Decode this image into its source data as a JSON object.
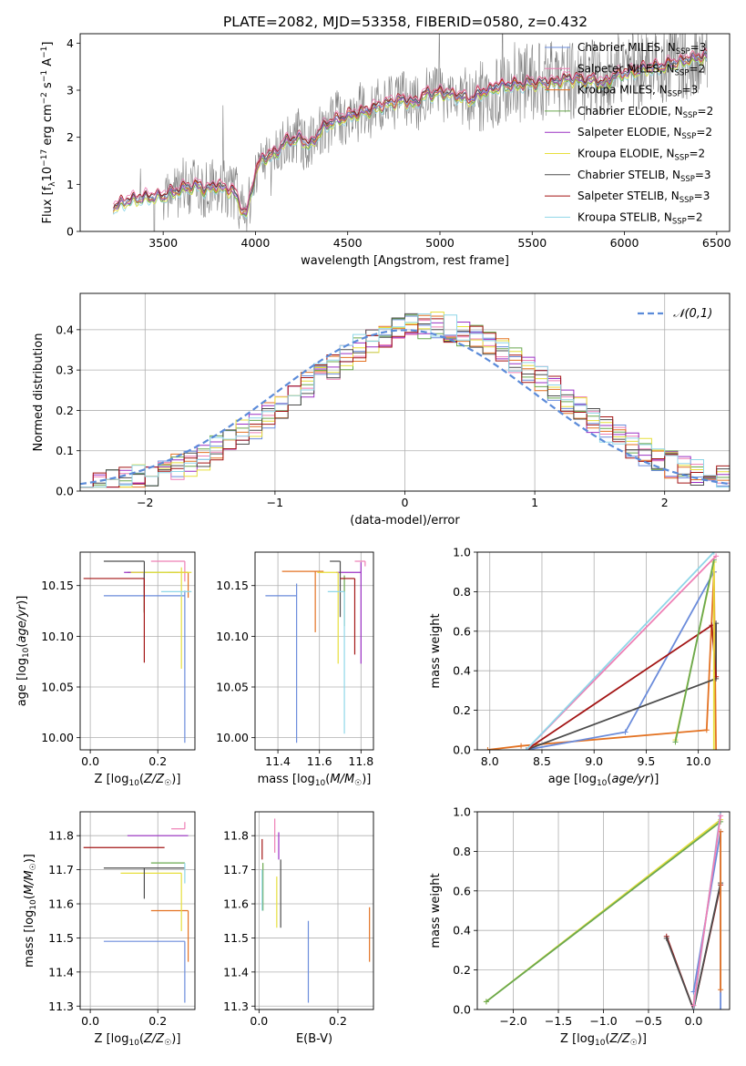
{
  "figure": {
    "title": "PLATE=2082, MJD=53358, FIBERID=0580, z=0.432"
  },
  "colors": {
    "Chabrier MILES": "#6b8cdb",
    "Salpeter MILES": "#ee7fb5",
    "Kroupa MILES": "#e37222",
    "Chabrier ELODIE": "#6aa84f",
    "Salpeter ELODIE": "#9b30c4",
    "Kroupa ELODIE": "#e7df3c",
    "Chabrier STELIB": "#4d4d4d",
    "Salpeter STELIB": "#a31515",
    "Kroupa STELIB": "#8fd6e8",
    "Gaussian": "#5b8bd9",
    "data": "#808080"
  },
  "chart_data": [
    {
      "id": "spectrum",
      "type": "line",
      "xlabel": "wavelength [Angstrom, rest frame]",
      "ylabel": "Flux [f_λ 10^-17 erg cm^-2 s^-1 A^-1]",
      "xlim": [
        3050,
        6570
      ],
      "ylim": [
        0,
        4.2
      ],
      "xticks": [
        3500,
        4000,
        4500,
        5000,
        5500,
        6000,
        6500
      ],
      "yticks": [
        0,
        1,
        2,
        3,
        4
      ],
      "grid": false,
      "legend_position": "upper-right",
      "legend": [
        {
          "name": "Chabrier MILES",
          "nssp": "3"
        },
        {
          "name": "Salpeter MILES",
          "nssp": "2"
        },
        {
          "name": "Kroupa MILES",
          "nssp": "3"
        },
        {
          "name": "Chabrier ELODIE",
          "nssp": "2"
        },
        {
          "name": "Salpeter ELODIE",
          "nssp": "2"
        },
        {
          "name": "Kroupa ELODIE",
          "nssp": "2"
        },
        {
          "name": "Chabrier STELIB",
          "nssp": "3"
        },
        {
          "name": "Salpeter STELIB",
          "nssp": "3"
        },
        {
          "name": "Kroupa STELIB",
          "nssp": "2"
        }
      ],
      "continuum": {
        "x": [
          3230,
          3300,
          3400,
          3500,
          3600,
          3700,
          3800,
          3900,
          3950,
          4000,
          4100,
          4200,
          4300,
          4400,
          4500,
          4600,
          4700,
          4800,
          4900,
          5000,
          5100,
          5200,
          5300,
          5400,
          5500,
          5600,
          5700,
          5800,
          5900,
          6000,
          6100,
          6200,
          6300,
          6400
        ],
        "y": [
          0.5,
          0.65,
          0.72,
          0.75,
          0.9,
          1.0,
          0.95,
          0.85,
          0.9,
          1.4,
          1.8,
          1.95,
          2.05,
          2.3,
          2.45,
          2.55,
          2.7,
          2.8,
          2.9,
          2.95,
          2.9,
          3.05,
          3.1,
          3.1,
          3.15,
          3.15,
          3.25,
          3.2,
          3.3,
          3.35,
          3.45,
          3.5,
          3.6,
          3.7
        ]
      }
    },
    {
      "id": "residuals",
      "type": "step",
      "xlabel": "(data-model)/error",
      "ylabel": "Normed distribution",
      "xlim": [
        -2.5,
        2.5
      ],
      "ylim": [
        0,
        0.49
      ],
      "xticks": [
        -2,
        -1,
        0,
        1,
        2
      ],
      "yticks": [
        0.0,
        0.1,
        0.2,
        0.3,
        0.4
      ],
      "grid": true,
      "legend_position": "upper-right",
      "gaussian_label": "𝒩(0,1)"
    },
    {
      "id": "age_vs_Z",
      "type": "errorbar",
      "xlabel": "Z [log10(Z/Z☉)]",
      "ylabel": "age [log10(age/yr)]",
      "xlim": [
        -0.03,
        0.31
      ],
      "ylim": [
        9.988,
        10.183
      ],
      "xticks": [
        0.0,
        0.2
      ],
      "yticks": [
        10.0,
        10.05,
        10.1,
        10.15
      ],
      "grid": true,
      "points": [
        {
          "model": "Chabrier MILES",
          "x": 0.28,
          "xerr": [
            0.24,
            0.0
          ],
          "y": 10.14,
          "yerr": [
            0.145,
            0.005
          ]
        },
        {
          "model": "Salpeter MILES",
          "x": 0.28,
          "xerr": [
            0.1,
            0.0
          ],
          "y": 10.174,
          "yerr": [
            0.02,
            0.0
          ]
        },
        {
          "model": "Kroupa MILES",
          "x": 0.29,
          "xerr": [
            0.06,
            0.0
          ],
          "y": 10.163,
          "yerr": [
            0.025,
            0.0
          ]
        },
        {
          "model": "Chabrier ELODIE",
          "x": 0.16,
          "xerr": [
            0.05,
            0.1
          ],
          "y": 10.163,
          "yerr": [
            0.04,
            0.0
          ]
        },
        {
          "model": "Salpeter ELODIE",
          "x": 0.16,
          "xerr": [
            0.06,
            0.0
          ],
          "y": 10.163,
          "yerr": [
            0.02,
            0.0
          ]
        },
        {
          "model": "Kroupa ELODIE",
          "x": 0.27,
          "xerr": [
            0.15,
            0.03
          ],
          "y": 10.163,
          "yerr": [
            0.095,
            0.005
          ]
        },
        {
          "model": "Chabrier STELIB",
          "x": 0.16,
          "xerr": [
            0.12,
            0.0
          ],
          "y": 10.174,
          "yerr": [
            0.05,
            0.0
          ]
        },
        {
          "model": "Salpeter STELIB",
          "x": 0.16,
          "xerr": [
            0.18,
            0.0
          ],
          "y": 10.157,
          "yerr": [
            0.083,
            0.0
          ]
        },
        {
          "model": "Kroupa STELIB",
          "x": 0.27,
          "xerr": [
            0.06,
            0.03
          ],
          "y": 10.144,
          "yerr": [
            0.005,
            0.0
          ]
        }
      ]
    },
    {
      "id": "age_vs_mass",
      "type": "errorbar",
      "xlabel": "mass [log10(M/M☉)]",
      "ylabel": "",
      "xlim": [
        11.29,
        11.86
      ],
      "ylim": [
        9.988,
        10.183
      ],
      "xticks": [
        11.4,
        11.6,
        11.8
      ],
      "yticks": [
        10.0,
        10.05,
        10.1,
        10.15
      ],
      "grid": true,
      "points": [
        {
          "model": "Chabrier MILES",
          "x": 11.49,
          "xerr": [
            0.15,
            0.0
          ],
          "y": 10.14,
          "yerr": [
            0.145,
            0.012
          ]
        },
        {
          "model": "Salpeter MILES",
          "x": 11.82,
          "xerr": [
            0.05,
            0.0
          ],
          "y": 10.174,
          "yerr": [
            0.005,
            0.0
          ]
        },
        {
          "model": "Kroupa MILES",
          "x": 11.58,
          "xerr": [
            0.16,
            0.04
          ],
          "y": 10.164,
          "yerr": [
            0.06,
            0.0
          ]
        },
        {
          "model": "Chabrier ELODIE",
          "x": 11.72,
          "xerr": [
            0.0,
            0.0
          ],
          "y": 10.16,
          "yerr": [
            0.05,
            0.0
          ]
        },
        {
          "model": "Salpeter ELODIE",
          "x": 11.8,
          "xerr": [
            0.12,
            0.0
          ],
          "y": 10.163,
          "yerr": [
            0.09,
            0.01
          ]
        },
        {
          "model": "Kroupa ELODIE",
          "x": 11.69,
          "xerr": [
            0.1,
            0.0
          ],
          "y": 10.163,
          "yerr": [
            0.09,
            0.0
          ]
        },
        {
          "model": "Chabrier STELIB",
          "x": 11.7,
          "xerr": [
            0.05,
            0.0
          ],
          "y": 10.174,
          "yerr": [
            0.055,
            0.0
          ]
        },
        {
          "model": "Salpeter STELIB",
          "x": 11.77,
          "xerr": [
            0.07,
            0.0
          ],
          "y": 10.157,
          "yerr": [
            0.075,
            0.0
          ]
        },
        {
          "model": "Kroupa STELIB",
          "x": 11.72,
          "xerr": [
            0.08,
            0.0
          ],
          "y": 10.144,
          "yerr": [
            0.14,
            0.0
          ]
        }
      ]
    },
    {
      "id": "weight_vs_age",
      "type": "line",
      "xlabel": "age [log10(age/yr)]",
      "ylabel": "mass weight",
      "xlim": [
        7.88,
        10.3
      ],
      "ylim": [
        0,
        1
      ],
      "xticks": [
        8.0,
        8.5,
        9.0,
        9.5,
        10.0
      ],
      "yticks": [
        0.0,
        0.2,
        0.4,
        0.6,
        0.8,
        1.0
      ],
      "grid": true,
      "series": [
        {
          "model": "Kroupa MILES",
          "x": [
            7.98,
            8.3,
            10.08,
            10.15,
            10.17
          ],
          "y": [
            0.0,
            0.02,
            0.1,
            0.9,
            0.0
          ]
        },
        {
          "model": "Chabrier MILES",
          "x": [
            8.35,
            9.3,
            10.15
          ],
          "y": [
            0.0,
            0.09,
            0.9
          ]
        },
        {
          "model": "Chabrier STELIB",
          "x": [
            8.35,
            10.17,
            10.17
          ],
          "y": [
            0.0,
            0.36,
            0.64
          ]
        },
        {
          "model": "Salpeter STELIB",
          "x": [
            8.35,
            10.13,
            10.17
          ],
          "y": [
            0.0,
            0.63,
            0.37
          ]
        },
        {
          "model": "Kroupa ELODIE",
          "x": [
            9.78,
            10.15,
            10.15
          ],
          "y": [
            0.05,
            0.95,
            0.0
          ]
        },
        {
          "model": "Chabrier ELODIE",
          "x": [
            9.78,
            10.15
          ],
          "y": [
            0.04,
            0.96
          ]
        },
        {
          "model": "Salpeter MILES",
          "x": [
            8.35,
            10.17
          ],
          "y": [
            0.0,
            0.98
          ]
        },
        {
          "model": "Kroupa STELIB",
          "x": [
            8.35,
            10.15
          ],
          "y": [
            0.0,
            1.0
          ]
        }
      ]
    },
    {
      "id": "mass_vs_Z",
      "type": "errorbar",
      "xlabel": "Z [log10(Z/Z☉)]",
      "ylabel": "mass [log10(M/M☉)]",
      "xlim": [
        -0.03,
        0.31
      ],
      "ylim": [
        11.29,
        11.87
      ],
      "xticks": [
        0.0,
        0.2
      ],
      "yticks": [
        11.3,
        11.4,
        11.5,
        11.6,
        11.7,
        11.8
      ],
      "grid": true,
      "points": [
        {
          "model": "Chabrier MILES",
          "x": 0.28,
          "xerr": [
            0.24,
            0.0
          ],
          "y": 11.49,
          "yerr": [
            0.18,
            0.0
          ]
        },
        {
          "model": "Salpeter MILES",
          "x": 0.28,
          "xerr": [
            0.04,
            0.0
          ],
          "y": 11.82,
          "yerr": [
            0.0,
            0.02
          ]
        },
        {
          "model": "Kroupa MILES",
          "x": 0.29,
          "xerr": [
            0.11,
            0.0
          ],
          "y": 11.58,
          "yerr": [
            0.15,
            0.0
          ]
        },
        {
          "model": "Chabrier ELODIE",
          "x": 0.28,
          "xerr": [
            0.1,
            0.0
          ],
          "y": 11.72,
          "yerr": [
            0.0,
            0.0
          ]
        },
        {
          "model": "Salpeter ELODIE",
          "x": 0.29,
          "xerr": [
            0.18,
            0.0
          ],
          "y": 11.8,
          "yerr": [
            0.0,
            0.0
          ]
        },
        {
          "model": "Kroupa ELODIE",
          "x": 0.27,
          "xerr": [
            0.18,
            0.0
          ],
          "y": 11.69,
          "yerr": [
            0.17,
            0.0
          ]
        },
        {
          "model": "Chabrier STELIB",
          "x": 0.16,
          "xerr": [
            0.12,
            0.12
          ],
          "y": 11.705,
          "yerr": [
            0.09,
            0.0
          ]
        },
        {
          "model": "Salpeter STELIB",
          "x": 0.16,
          "xerr": [
            0.18,
            0.06
          ],
          "y": 11.765,
          "yerr": [
            0.0,
            0.0
          ]
        },
        {
          "model": "Kroupa STELIB",
          "x": 0.28,
          "xerr": [
            0.0,
            0.0
          ],
          "y": 11.72,
          "yerr": [
            0.06,
            0.0
          ]
        }
      ]
    },
    {
      "id": "mass_vs_ebv",
      "type": "errorbar",
      "xlabel": "E(B-V)",
      "ylabel": "",
      "xlim": [
        -0.01,
        0.29
      ],
      "ylim": [
        11.29,
        11.87
      ],
      "xticks": [
        0.0,
        0.2
      ],
      "yticks": [
        11.3,
        11.4,
        11.5,
        11.6,
        11.7,
        11.8
      ],
      "grid": true,
      "points": [
        {
          "model": "Chabrier MILES",
          "x": 0.125,
          "xerr": [
            0.0,
            0.0
          ],
          "y": 11.49,
          "yerr": [
            0.18,
            0.06
          ]
        },
        {
          "model": "Salpeter MILES",
          "x": 0.04,
          "xerr": [
            0.0,
            0.0
          ],
          "y": 11.82,
          "yerr": [
            0.07,
            0.03
          ]
        },
        {
          "model": "Kroupa MILES",
          "x": 0.28,
          "xerr": [
            0.0,
            0.0
          ],
          "y": 11.52,
          "yerr": [
            0.09,
            0.07
          ]
        },
        {
          "model": "Chabrier ELODIE",
          "x": 0.01,
          "xerr": [
            0.0,
            0.0
          ],
          "y": 11.68,
          "yerr": [
            0.1,
            0.04
          ]
        },
        {
          "model": "Salpeter ELODIE",
          "x": 0.05,
          "xerr": [
            0.0,
            0.0
          ],
          "y": 11.78,
          "yerr": [
            0.05,
            0.03
          ]
        },
        {
          "model": "Kroupa ELODIE",
          "x": 0.045,
          "xerr": [
            0.0,
            0.0
          ],
          "y": 11.58,
          "yerr": [
            0.05,
            0.1
          ]
        },
        {
          "model": "Chabrier STELIB",
          "x": 0.055,
          "xerr": [
            0.0,
            0.0
          ],
          "y": 11.63,
          "yerr": [
            0.1,
            0.1
          ]
        },
        {
          "model": "Salpeter STELIB",
          "x": 0.008,
          "xerr": [
            0.0,
            0.0
          ],
          "y": 11.76,
          "yerr": [
            0.03,
            0.03
          ]
        },
        {
          "model": "Kroupa STELIB",
          "x": 0.008,
          "xerr": [
            0.0,
            0.0
          ],
          "y": 11.62,
          "yerr": [
            0.04,
            0.08
          ]
        }
      ]
    },
    {
      "id": "weight_vs_Z",
      "type": "line",
      "xlabel": "Z [log10(Z/Z☉)]",
      "ylabel": "mass weight",
      "xlim": [
        -2.4,
        0.4
      ],
      "ylim": [
        0,
        1
      ],
      "xticks": [
        -2.0,
        -1.5,
        -1.0,
        -0.5,
        0.0
      ],
      "yticks": [
        0.0,
        0.2,
        0.4,
        0.6,
        0.8,
        1.0
      ],
      "grid": true,
      "series": [
        {
          "model": "Kroupa ELODIE",
          "x": [
            -2.3,
            0.3
          ],
          "y": [
            0.04,
            0.96
          ]
        },
        {
          "model": "Chabrier ELODIE",
          "x": [
            -2.3,
            0.3
          ],
          "y": [
            0.04,
            0.95
          ]
        },
        {
          "model": "Salpeter STELIB",
          "x": [
            -0.3,
            0.0,
            0.3
          ],
          "y": [
            0.37,
            0.0,
            0.63
          ]
        },
        {
          "model": "Chabrier STELIB",
          "x": [
            -0.3,
            0.0,
            0.3
          ],
          "y": [
            0.36,
            0.0,
            0.64
          ]
        },
        {
          "model": "Chabrier MILES",
          "x": [
            0.0,
            0.3,
            0.3
          ],
          "y": [
            0.09,
            0.9,
            0.0
          ]
        },
        {
          "model": "Kroupa MILES",
          "x": [
            0.3,
            0.3
          ],
          "y": [
            0.1,
            0.9
          ]
        },
        {
          "model": "Kroupa STELIB",
          "x": [
            0.0,
            0.3
          ],
          "y": [
            0.0,
            1.0
          ]
        },
        {
          "model": "Salpeter MILES",
          "x": [
            0.0,
            0.3
          ],
          "y": [
            0.02,
            0.98
          ]
        }
      ]
    }
  ]
}
